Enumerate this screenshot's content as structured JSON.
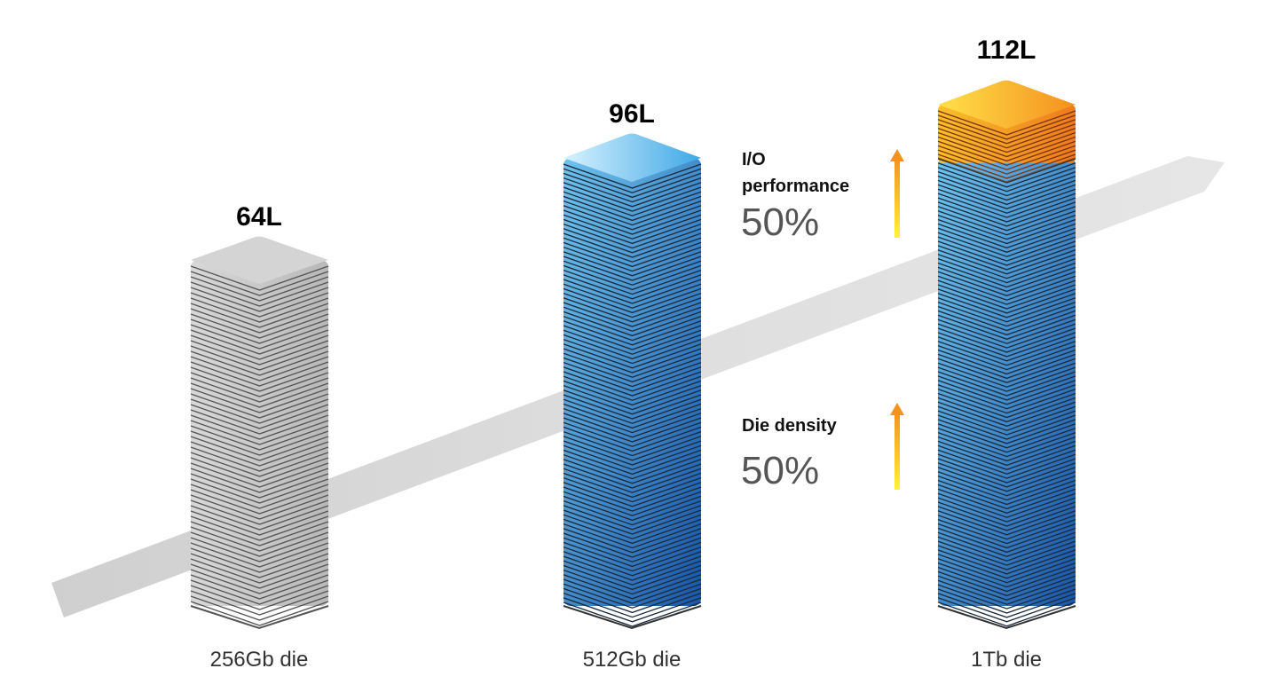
{
  "towers": [
    {
      "title": "64L",
      "caption": "256Gb die"
    },
    {
      "title": "96L",
      "caption": "512Gb die"
    },
    {
      "title": "112L",
      "caption": "1Tb die"
    }
  ],
  "metrics": [
    {
      "label_line1": "I/O",
      "label_line2": "performance",
      "value": "50%"
    },
    {
      "label_line1": "Die density",
      "label_line2": "",
      "value": "50%"
    }
  ],
  "colors": {
    "gray_tower": "#c8c8c8",
    "blue_tower": "#2f8fd0",
    "orange_cap": "#f08a20",
    "arrow_bar": "#e0e0e0",
    "up_arrow_top": "#f5921e",
    "up_arrow_bottom": "#fff23a"
  }
}
